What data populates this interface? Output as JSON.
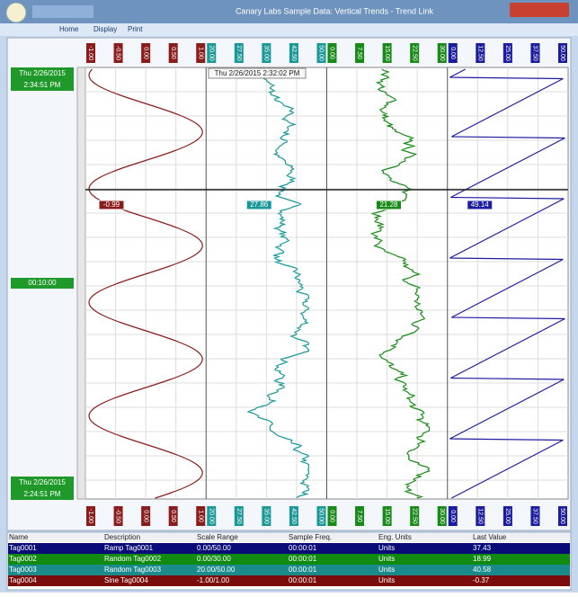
{
  "window": {
    "title": "Canary Labs Sample Data: Vertical Trends - Trend Link"
  },
  "menu": [
    "Home",
    "Display",
    "Print"
  ],
  "time_axis": {
    "top_date": "Thu 2/26/2015",
    "top_time": "2:34:51 PM",
    "span": "00:10:00",
    "bottom_date": "Thu 2/26/2015",
    "bottom_time": "2:24:51 PM"
  },
  "cursor_time": "Thu 2/26/2015  2:32:02 PM",
  "trends": [
    {
      "color": "#8b1c1c",
      "scale_labels": [
        "-1.00",
        "-0.50",
        "0.00",
        "0.50",
        "1.00"
      ],
      "cursor_value": "-0.99"
    },
    {
      "color": "#1a9898",
      "scale_labels": [
        "20.00",
        "27.50",
        "35.00",
        "42.50",
        "50.00"
      ],
      "cursor_value": "27.86"
    },
    {
      "color": "#178a17",
      "scale_labels": [
        "0.00",
        "7.50",
        "15.00",
        "22.50",
        "30.00"
      ],
      "cursor_value": "21.28"
    },
    {
      "color": "#1c1ca0",
      "scale_labels": [
        "0.00",
        "12.50",
        "25.00",
        "37.50",
        "50.00"
      ],
      "cursor_value": "49.14"
    }
  ],
  "table": {
    "columns": [
      "Name",
      "Description",
      "Scale Range",
      "Sample Freq.",
      "Eng. Units",
      "Last Value"
    ],
    "rows": [
      {
        "color": "#0a0a78",
        "cells": [
          "Tag0001",
          "Ramp Tag0001",
          "0.00/50.00",
          "00:00:01",
          "Units",
          "37.43"
        ]
      },
      {
        "color": "#118a11",
        "cells": [
          "Tag0002",
          "Random Tag0002",
          "0.00/30.00",
          "00:00:01",
          "Units",
          "18.99"
        ]
      },
      {
        "color": "#1a8a8a",
        "cells": [
          "Tag0003",
          "Random Tag0003",
          "20.00/50.00",
          "00:00:01",
          "Units",
          "40.58"
        ]
      },
      {
        "color": "#7a0c0c",
        "cells": [
          "Tag0004",
          "Sine Tag0004",
          "-1.00/1.00",
          "00:00:01",
          "Units",
          "-0.37"
        ]
      }
    ]
  }
}
